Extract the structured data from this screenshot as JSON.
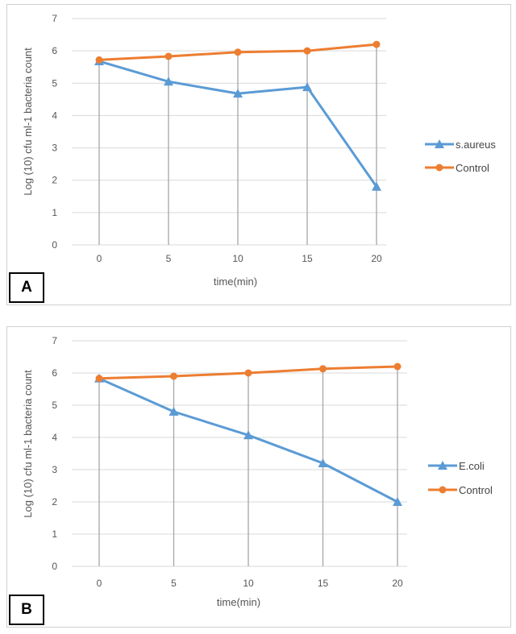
{
  "colors": {
    "series1": "#5b9bd5",
    "control": "#ed7d31",
    "gridline": "#a6a6a6"
  },
  "chart_data": [
    {
      "panel_label": "A",
      "type": "line",
      "x": [
        0,
        5,
        10,
        15,
        20
      ],
      "xlabel": "time(min)",
      "ylabel": "Log (10) cfu ml-1 bacteria count",
      "ylim": [
        0,
        7
      ],
      "yticks": [
        0,
        1,
        2,
        3,
        4,
        5,
        6,
        7
      ],
      "legend_position": "right",
      "vertical_gridlines": true,
      "series": [
        {
          "name": "s.aureus",
          "marker": "triangle",
          "values": [
            5.68,
            5.05,
            4.68,
            4.88,
            1.8
          ]
        },
        {
          "name": "Control",
          "marker": "circle",
          "values": [
            5.72,
            5.83,
            5.96,
            6.0,
            6.2
          ]
        }
      ]
    },
    {
      "panel_label": "B",
      "type": "line",
      "x": [
        0,
        5,
        10,
        15,
        20
      ],
      "xlabel": "time(min)",
      "ylabel": "Log (10) cfu ml-1 bacteria count",
      "ylim": [
        0,
        7
      ],
      "yticks": [
        0,
        1,
        2,
        3,
        4,
        5,
        6,
        7
      ],
      "legend_position": "right",
      "vertical_gridlines": true,
      "series": [
        {
          "name": "E.coli",
          "marker": "triangle",
          "values": [
            5.83,
            4.8,
            4.07,
            3.2,
            2.0
          ]
        },
        {
          "name": "Control",
          "marker": "circle",
          "values": [
            5.83,
            5.9,
            6.0,
            6.13,
            6.2
          ]
        }
      ]
    }
  ]
}
